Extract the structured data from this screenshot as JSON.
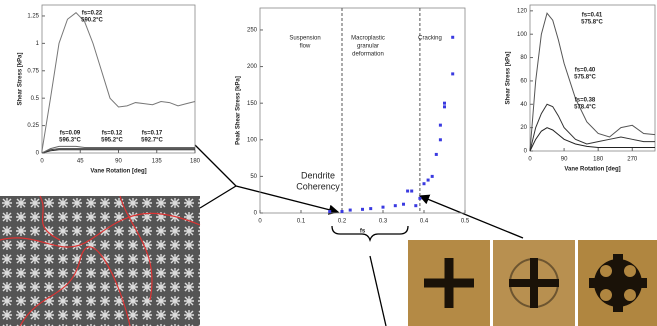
{
  "chart_data": [
    {
      "type": "line",
      "ylabel": "Shear Stress [kPa]",
      "xlabel": "Vane Rotation [deg]",
      "xlim": [
        0,
        180
      ],
      "xticks": [
        0,
        45,
        90,
        135,
        180
      ],
      "ylim": [
        0,
        1.35
      ],
      "yticks": [
        0,
        0.25,
        0.5,
        0.75,
        1,
        1.25
      ],
      "x": [
        0,
        10,
        20,
        30,
        40,
        50,
        60,
        70,
        80,
        90,
        100,
        110,
        120,
        130,
        140,
        150,
        160,
        170,
        180
      ],
      "series": [
        {
          "name": "fs=0.22",
          "note": "590.2°C",
          "color": "#777777",
          "values": [
            0.02,
            0.5,
            1.0,
            1.22,
            1.28,
            1.2,
            1.0,
            0.75,
            0.5,
            0.42,
            0.43,
            0.46,
            0.45,
            0.44,
            0.47,
            0.46,
            0.43,
            0.45,
            0.47
          ]
        },
        {
          "name": "fs=0.09",
          "note": "596.3°C",
          "color": "#222222",
          "values": [
            0,
            0.02,
            0.03,
            0.03,
            0.03,
            0.03,
            0.03,
            0.03,
            0.03,
            0.03,
            0.03,
            0.03,
            0.03,
            0.03,
            0.03,
            0.03,
            0.03,
            0.03,
            0.03
          ]
        },
        {
          "name": "fs=0.12",
          "note": "595.2°C",
          "color": "#444444",
          "values": [
            0,
            0.03,
            0.04,
            0.04,
            0.04,
            0.04,
            0.04,
            0.04,
            0.04,
            0.04,
            0.04,
            0.04,
            0.04,
            0.04,
            0.04,
            0.04,
            0.04,
            0.04,
            0.04
          ]
        },
        {
          "name": "fs=0.17",
          "note": "592.7°C",
          "color": "#666666",
          "values": [
            0,
            0.04,
            0.06,
            0.06,
            0.06,
            0.05,
            0.05,
            0.05,
            0.05,
            0.05,
            0.05,
            0.05,
            0.05,
            0.05,
            0.05,
            0.05,
            0.05,
            0.05,
            0.05
          ]
        }
      ]
    },
    {
      "type": "scatter",
      "ylabel": "Peak Shear Stress [kPa]",
      "xlabel": "fs",
      "xlim": [
        0,
        0.5
      ],
      "xticks": [
        0,
        0.1,
        0.2,
        0.3,
        0.4,
        0.5
      ],
      "ylim": [
        0,
        280
      ],
      "yticks": [
        0,
        50,
        100,
        150,
        200,
        250
      ],
      "boundaries": [
        0.2,
        0.39
      ],
      "regions": [
        [
          "Suspension",
          "flow"
        ],
        [
          "Macroplastic",
          "granular",
          "deformation"
        ],
        [
          "Cracking"
        ]
      ],
      "annotation": [
        "Dendrite",
        "Coherency"
      ],
      "color": "#3a3ae0",
      "x": [
        0.17,
        0.2,
        0.22,
        0.25,
        0.27,
        0.3,
        0.33,
        0.35,
        0.36,
        0.37,
        0.38,
        0.39,
        0.4,
        0.41,
        0.42,
        0.43,
        0.44,
        0.44,
        0.45,
        0.45,
        0.47,
        0.47
      ],
      "values": [
        2,
        2,
        4,
        5,
        6,
        8,
        10,
        12,
        30,
        30,
        10,
        20,
        40,
        45,
        50,
        80,
        100,
        120,
        145,
        150,
        190,
        240
      ]
    },
    {
      "type": "line",
      "ylabel": "Shear Stress [kPa]",
      "xlabel": "Vane Rotation [deg]",
      "xlim": [
        0,
        330
      ],
      "xticks": [
        0,
        90,
        180,
        270
      ],
      "ylim": [
        0,
        125
      ],
      "yticks": [
        0,
        20,
        40,
        60,
        80,
        100,
        120
      ],
      "x": [
        0,
        15,
        30,
        45,
        60,
        75,
        90,
        120,
        150,
        180,
        210,
        240,
        270,
        300,
        330
      ],
      "series": [
        {
          "name": "fs=0.41",
          "note": "575.8°C",
          "color": "#555555",
          "values": [
            0,
            60,
            100,
            118,
            112,
            95,
            75,
            45,
            25,
            15,
            12,
            20,
            22,
            15,
            14
          ]
        },
        {
          "name": "fs=0.40",
          "note": "575.8°C",
          "color": "#333333",
          "values": [
            0,
            20,
            32,
            40,
            38,
            30,
            20,
            10,
            6,
            8,
            10,
            12,
            10,
            8,
            8
          ]
        },
        {
          "name": "fs=0.38",
          "note": "578.4°C",
          "color": "#222222",
          "values": [
            0,
            10,
            17,
            20,
            18,
            14,
            10,
            6,
            4,
            3,
            3,
            3,
            3,
            3,
            3
          ]
        }
      ]
    }
  ]
}
